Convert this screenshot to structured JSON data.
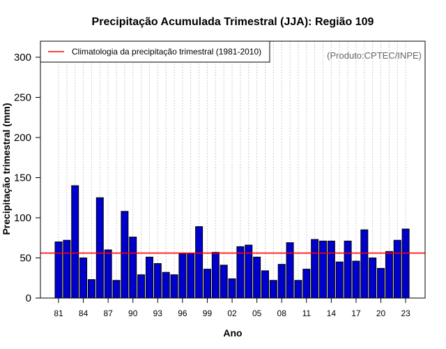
{
  "chart_data": {
    "type": "bar",
    "title": "Precipitação Acumulada Trimestral (JJA): Região 109",
    "xlabel": "Ano",
    "ylabel": "Precipitação trimestral (mm)",
    "credit": "(Produto:CPTEC/INPE)",
    "ylim": [
      0,
      320
    ],
    "yticks": [
      0,
      50,
      100,
      150,
      200,
      250,
      300
    ],
    "years": [
      1981,
      1982,
      1983,
      1984,
      1985,
      1986,
      1987,
      1988,
      1989,
      1990,
      1991,
      1992,
      1993,
      1994,
      1995,
      1996,
      1997,
      1998,
      1999,
      2000,
      2001,
      2002,
      2003,
      2004,
      2005,
      2006,
      2007,
      2008,
      2009,
      2010,
      2011,
      2012,
      2013,
      2014,
      2015,
      2016,
      2017,
      2018,
      2019,
      2020,
      2021,
      2022,
      2023
    ],
    "xtick_labels": [
      "81",
      "84",
      "87",
      "90",
      "93",
      "96",
      "99",
      "02",
      "05",
      "08",
      "11",
      "14",
      "17",
      "20",
      "23"
    ],
    "values": [
      70,
      72,
      140,
      50,
      23,
      125,
      60,
      22,
      108,
      76,
      29,
      51,
      43,
      32,
      29,
      55,
      56,
      89,
      36,
      57,
      41,
      24,
      64,
      66,
      51,
      34,
      22,
      42,
      69,
      22,
      36,
      73,
      71,
      71,
      45,
      71,
      46,
      85,
      50,
      37,
      58,
      72,
      86
    ],
    "bar_color": "#0000cd",
    "climatology": {
      "label": "Climatologia da precipitação trimestral (1981-2010)",
      "value": 56,
      "color": "#ff0000"
    },
    "grid": "vertical dotted",
    "legend_position": "top-left"
  }
}
